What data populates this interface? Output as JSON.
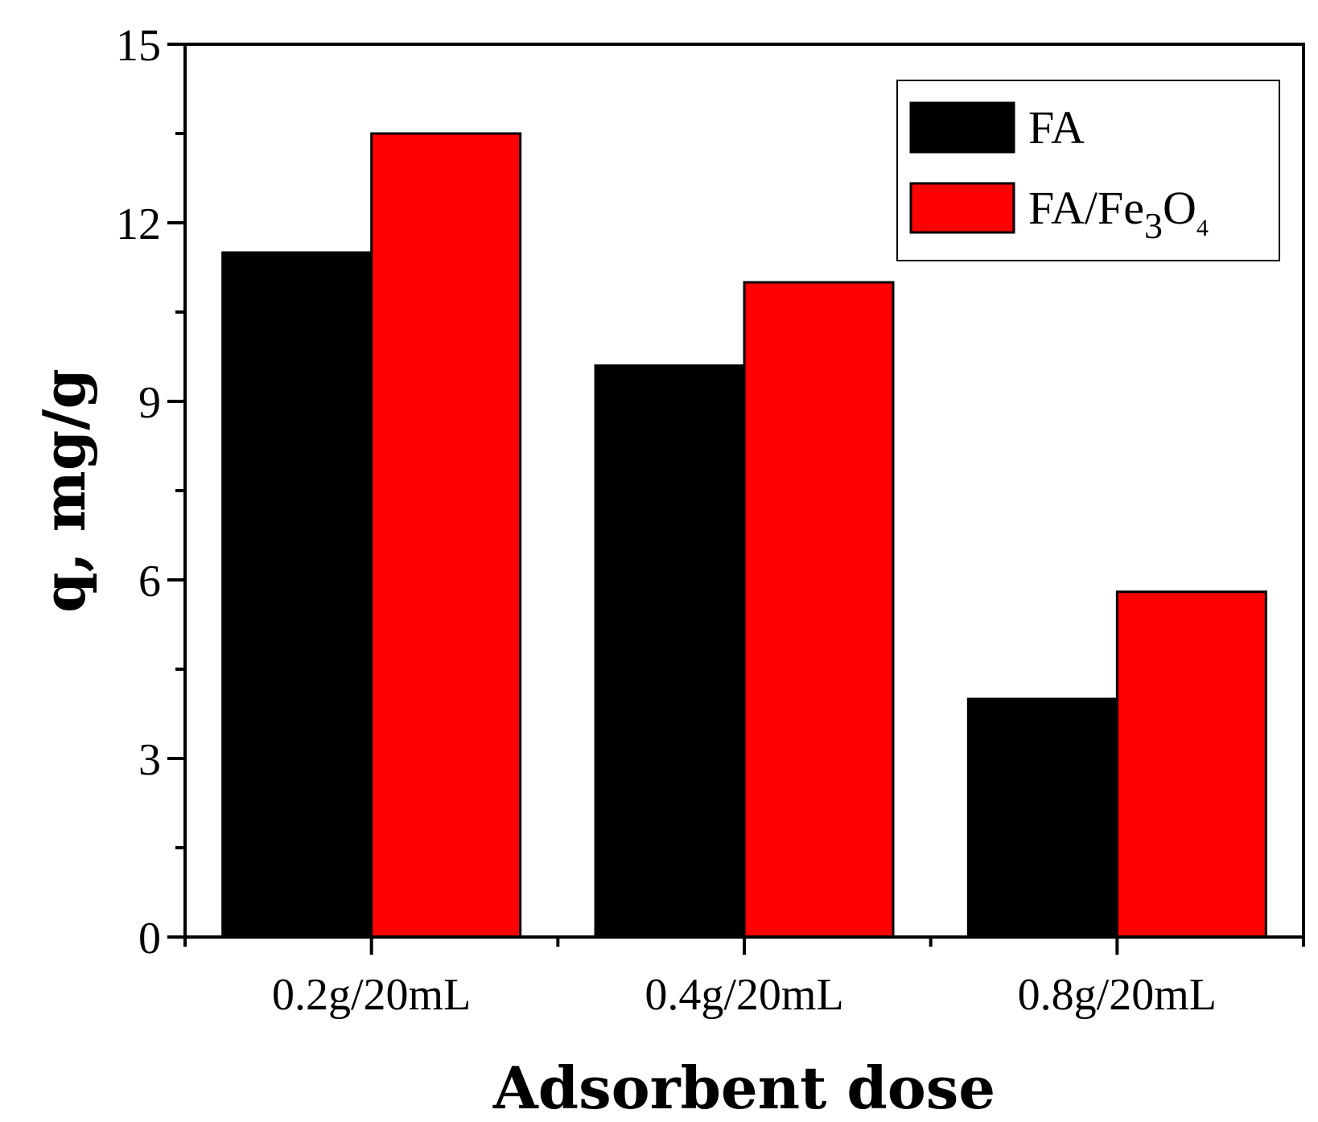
{
  "chart_data": {
    "type": "bar",
    "title": "",
    "xlabel": "Adsorbent dose",
    "ylabel": "q, mg/g",
    "categories": [
      "0.2g/20mL",
      "0.4g/20mL",
      "0.8g/20mL"
    ],
    "series": [
      {
        "name": "FA",
        "legend_main": "FA",
        "legend_sub3": "",
        "legend_mid": "",
        "legend_sub4": "",
        "color": "#000000",
        "values": [
          11.5,
          9.6,
          4.0
        ]
      },
      {
        "name": "FA/Fe3O4",
        "legend_main": "FA/Fe",
        "legend_sub3": "3",
        "legend_mid": "O",
        "legend_sub4": "4",
        "color": "#ff0000",
        "values": [
          13.5,
          11.0,
          5.8
        ]
      }
    ],
    "ylim": [
      0,
      15
    ],
    "yticks": [
      0,
      3,
      6,
      9,
      12,
      15
    ],
    "yticks_minor": [
      1.5,
      4.5,
      7.5,
      10.5,
      13.5
    ],
    "legend_position": "top-right",
    "grid": false
  }
}
